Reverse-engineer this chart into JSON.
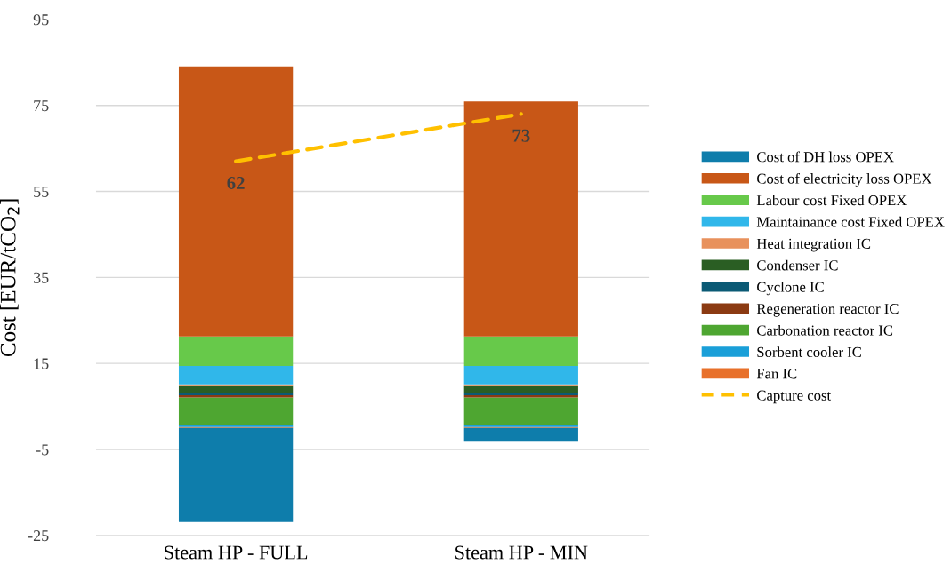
{
  "chart_data": {
    "type": "bar",
    "stacked": true,
    "ylabel": "Cost [EUR/tCO$_{2}$]",
    "categories": [
      "Steam HP - FULL",
      "Steam HP - MIN"
    ],
    "ylim": [
      -25,
      95
    ],
    "yticks": [
      -25,
      -5,
      15,
      35,
      55,
      75,
      95
    ],
    "grid": "y",
    "legend": "right",
    "series": [
      {
        "name": "Fan IC",
        "color": "#e8702a",
        "values": [
          0.2,
          0.2
        ]
      },
      {
        "name": "Sorbent cooler IC",
        "color": "#1a9fd8",
        "values": [
          0.4,
          0.4
        ]
      },
      {
        "name": "Carbonation reactor IC",
        "color": "#4ea631",
        "values": [
          6.5,
          6.5
        ]
      },
      {
        "name": "Regeneration reactor IC",
        "color": "#8b3a12",
        "values": [
          0.5,
          0.5
        ]
      },
      {
        "name": "Cyclone IC",
        "color": "#0b5a75",
        "values": [
          0.4,
          0.4
        ]
      },
      {
        "name": "Condenser IC",
        "color": "#2a5e23",
        "values": [
          1.7,
          1.7
        ]
      },
      {
        "name": "Heat integration IC",
        "color": "#e8915c",
        "values": [
          0.4,
          0.4
        ]
      },
      {
        "name": "Maintainance cost Fixed OPEX",
        "color": "#30b7ea",
        "values": [
          4.3,
          4.3
        ]
      },
      {
        "name": "Labour cost Fixed OPEX",
        "color": "#67c94a",
        "values": [
          6.9,
          6.9
        ]
      },
      {
        "name": "Cost of electricity loss OPEX",
        "color": "#c85717",
        "values": [
          62.8,
          54.6
        ]
      },
      {
        "name": "Cost of DH loss OPEX",
        "color": "#0e7dab",
        "values": [
          -21.9,
          -3.2
        ]
      },
      {
        "name": "Capture cost",
        "type": "line",
        "color": "#ffc000",
        "line_style": "dashed",
        "values": [
          62,
          73
        ],
        "value_labels": [
          "62",
          "73"
        ]
      }
    ]
  }
}
